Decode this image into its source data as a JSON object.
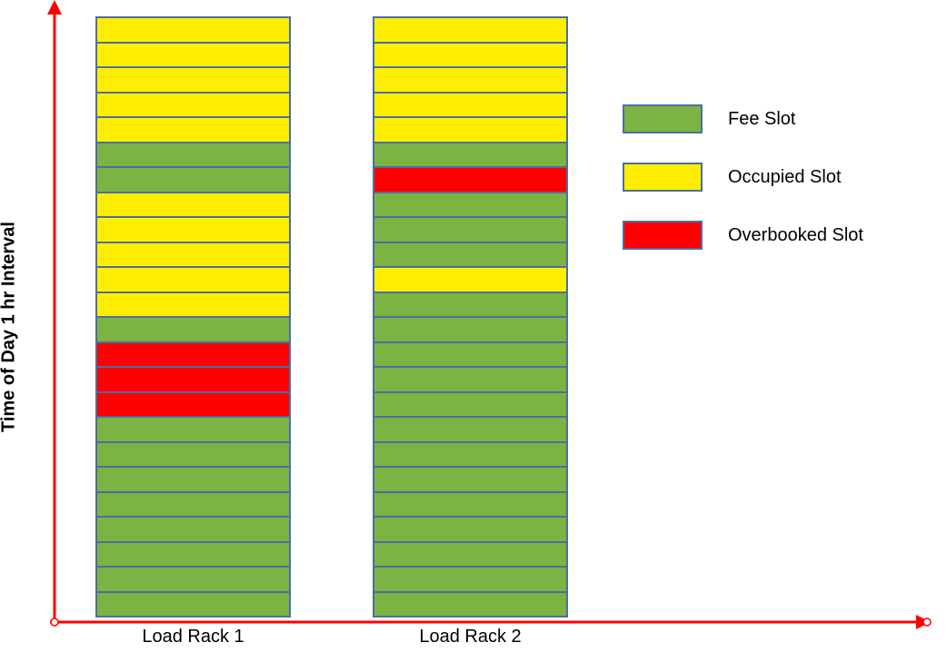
{
  "chart": {
    "type": "stacked-slot",
    "y_axis_label": "Time of Day 1 hr Interval",
    "y_axis_fontsize": 20,
    "y_axis_fontweight": "bold",
    "axis_color": "#ff0000",
    "axis_stroke_width": 3,
    "grid_border_color": "#4a6fa5",
    "grid_border_width": 2,
    "background_color": "#ffffff",
    "colors": {
      "free": "#7cb342",
      "occupied": "#ffee00",
      "overbooked": "#ff0000"
    },
    "racks": [
      {
        "label": "Load Rack 1",
        "slots": [
          "occupied",
          "occupied",
          "occupied",
          "occupied",
          "occupied",
          "free",
          "free",
          "occupied",
          "occupied",
          "occupied",
          "occupied",
          "occupied",
          "free",
          "overbooked",
          "overbooked",
          "overbooked",
          "free",
          "free",
          "free",
          "free",
          "free",
          "free",
          "free",
          "free"
        ]
      },
      {
        "label": "Load Rack 2",
        "slots": [
          "occupied",
          "occupied",
          "occupied",
          "occupied",
          "occupied",
          "free",
          "overbooked",
          "free",
          "free",
          "free",
          "occupied",
          "free",
          "free",
          "free",
          "free",
          "free",
          "free",
          "free",
          "free",
          "free",
          "free",
          "free",
          "free",
          "free"
        ]
      }
    ],
    "x_label_fontsize": 20,
    "legend": [
      {
        "key": "free",
        "label": "Fee Slot"
      },
      {
        "key": "occupied",
        "label": "Occupied Slot"
      },
      {
        "key": "overbooked",
        "label": "Overbooked Slot"
      }
    ],
    "legend_fontsize": 20
  }
}
